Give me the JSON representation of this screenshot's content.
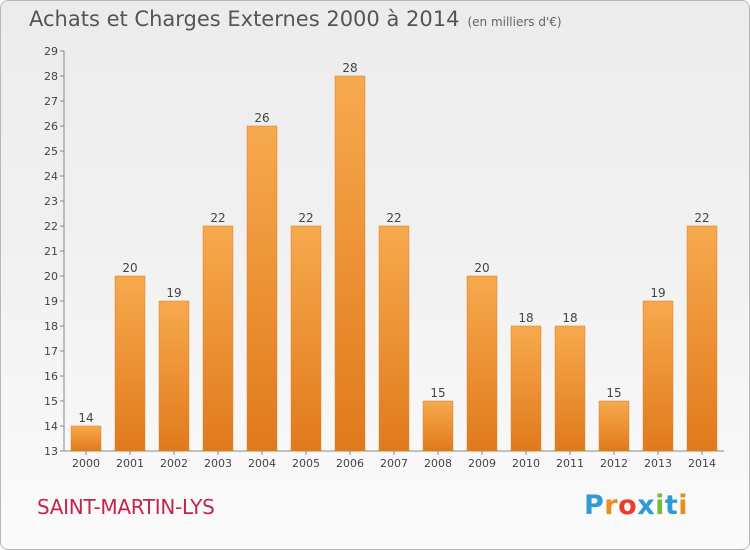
{
  "chart_data": {
    "type": "bar",
    "title": "Achats et Charges Externes 2000 à 2014",
    "subtitle": "(en milliers d'€)",
    "categories": [
      "2000",
      "2001",
      "2002",
      "2003",
      "2004",
      "2005",
      "2006",
      "2007",
      "2008",
      "2009",
      "2010",
      "2011",
      "2012",
      "2013",
      "2014"
    ],
    "values": [
      14,
      20,
      19,
      22,
      26,
      22,
      28,
      22,
      15,
      20,
      18,
      18,
      15,
      19,
      22
    ],
    "ylim": [
      13,
      29
    ],
    "yticks": [
      13,
      14,
      15,
      16,
      17,
      18,
      19,
      20,
      21,
      22,
      23,
      24,
      25,
      26,
      27,
      28,
      29
    ],
    "grid": false,
    "legend": "none",
    "bar_color": "#f0933a"
  },
  "footer": {
    "commune": "SAINT-MARTIN-LYS",
    "logo_letters": [
      "P",
      "r",
      "o",
      "x",
      "i",
      "t",
      "i"
    ],
    "logo_colors": [
      "#2e9bd4",
      "#f08a1c",
      "#e83e2c",
      "#2e9bd4",
      "#7ab83a",
      "#2e9bd4",
      "#f08a1c"
    ]
  }
}
